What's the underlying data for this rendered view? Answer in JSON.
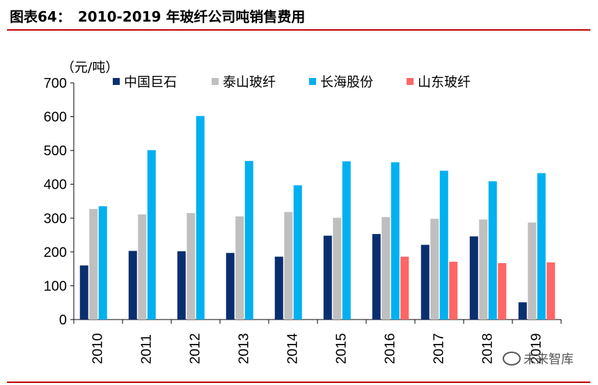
{
  "figure": {
    "label": "图表64：",
    "title": "2010-2019 年玻纤公司吨销售费用"
  },
  "watermark": "未来智库",
  "chart_data": {
    "type": "bar",
    "title": "2010-2019 年玻纤公司吨销售费用",
    "unit_label": "（元/吨）",
    "xlabel": "",
    "ylabel": "（元/吨）",
    "ylim": [
      0,
      700
    ],
    "yticks": [
      0,
      100,
      200,
      300,
      400,
      500,
      600,
      700
    ],
    "grid": false,
    "legend_position": "top",
    "categories": [
      "2010",
      "2011",
      "2012",
      "2013",
      "2014",
      "2015",
      "2016",
      "2017",
      "2018",
      "2019"
    ],
    "series": [
      {
        "name": "中国巨石",
        "color": "#0a2f6f",
        "values": [
          160,
          203,
          202,
          197,
          186,
          248,
          253,
          221,
          246,
          51
        ]
      },
      {
        "name": "泰山玻纤",
        "color": "#bfbfbf",
        "values": [
          327,
          311,
          315,
          305,
          318,
          301,
          303,
          298,
          296,
          287
        ]
      },
      {
        "name": "长海股份",
        "color": "#00b0f0",
        "values": [
          335,
          501,
          602,
          469,
          397,
          468,
          465,
          440,
          409,
          433
        ]
      },
      {
        "name": "山东玻纤",
        "color": "#ff6666",
        "values": [
          null,
          null,
          null,
          null,
          null,
          null,
          186,
          171,
          167,
          169
        ]
      }
    ]
  }
}
